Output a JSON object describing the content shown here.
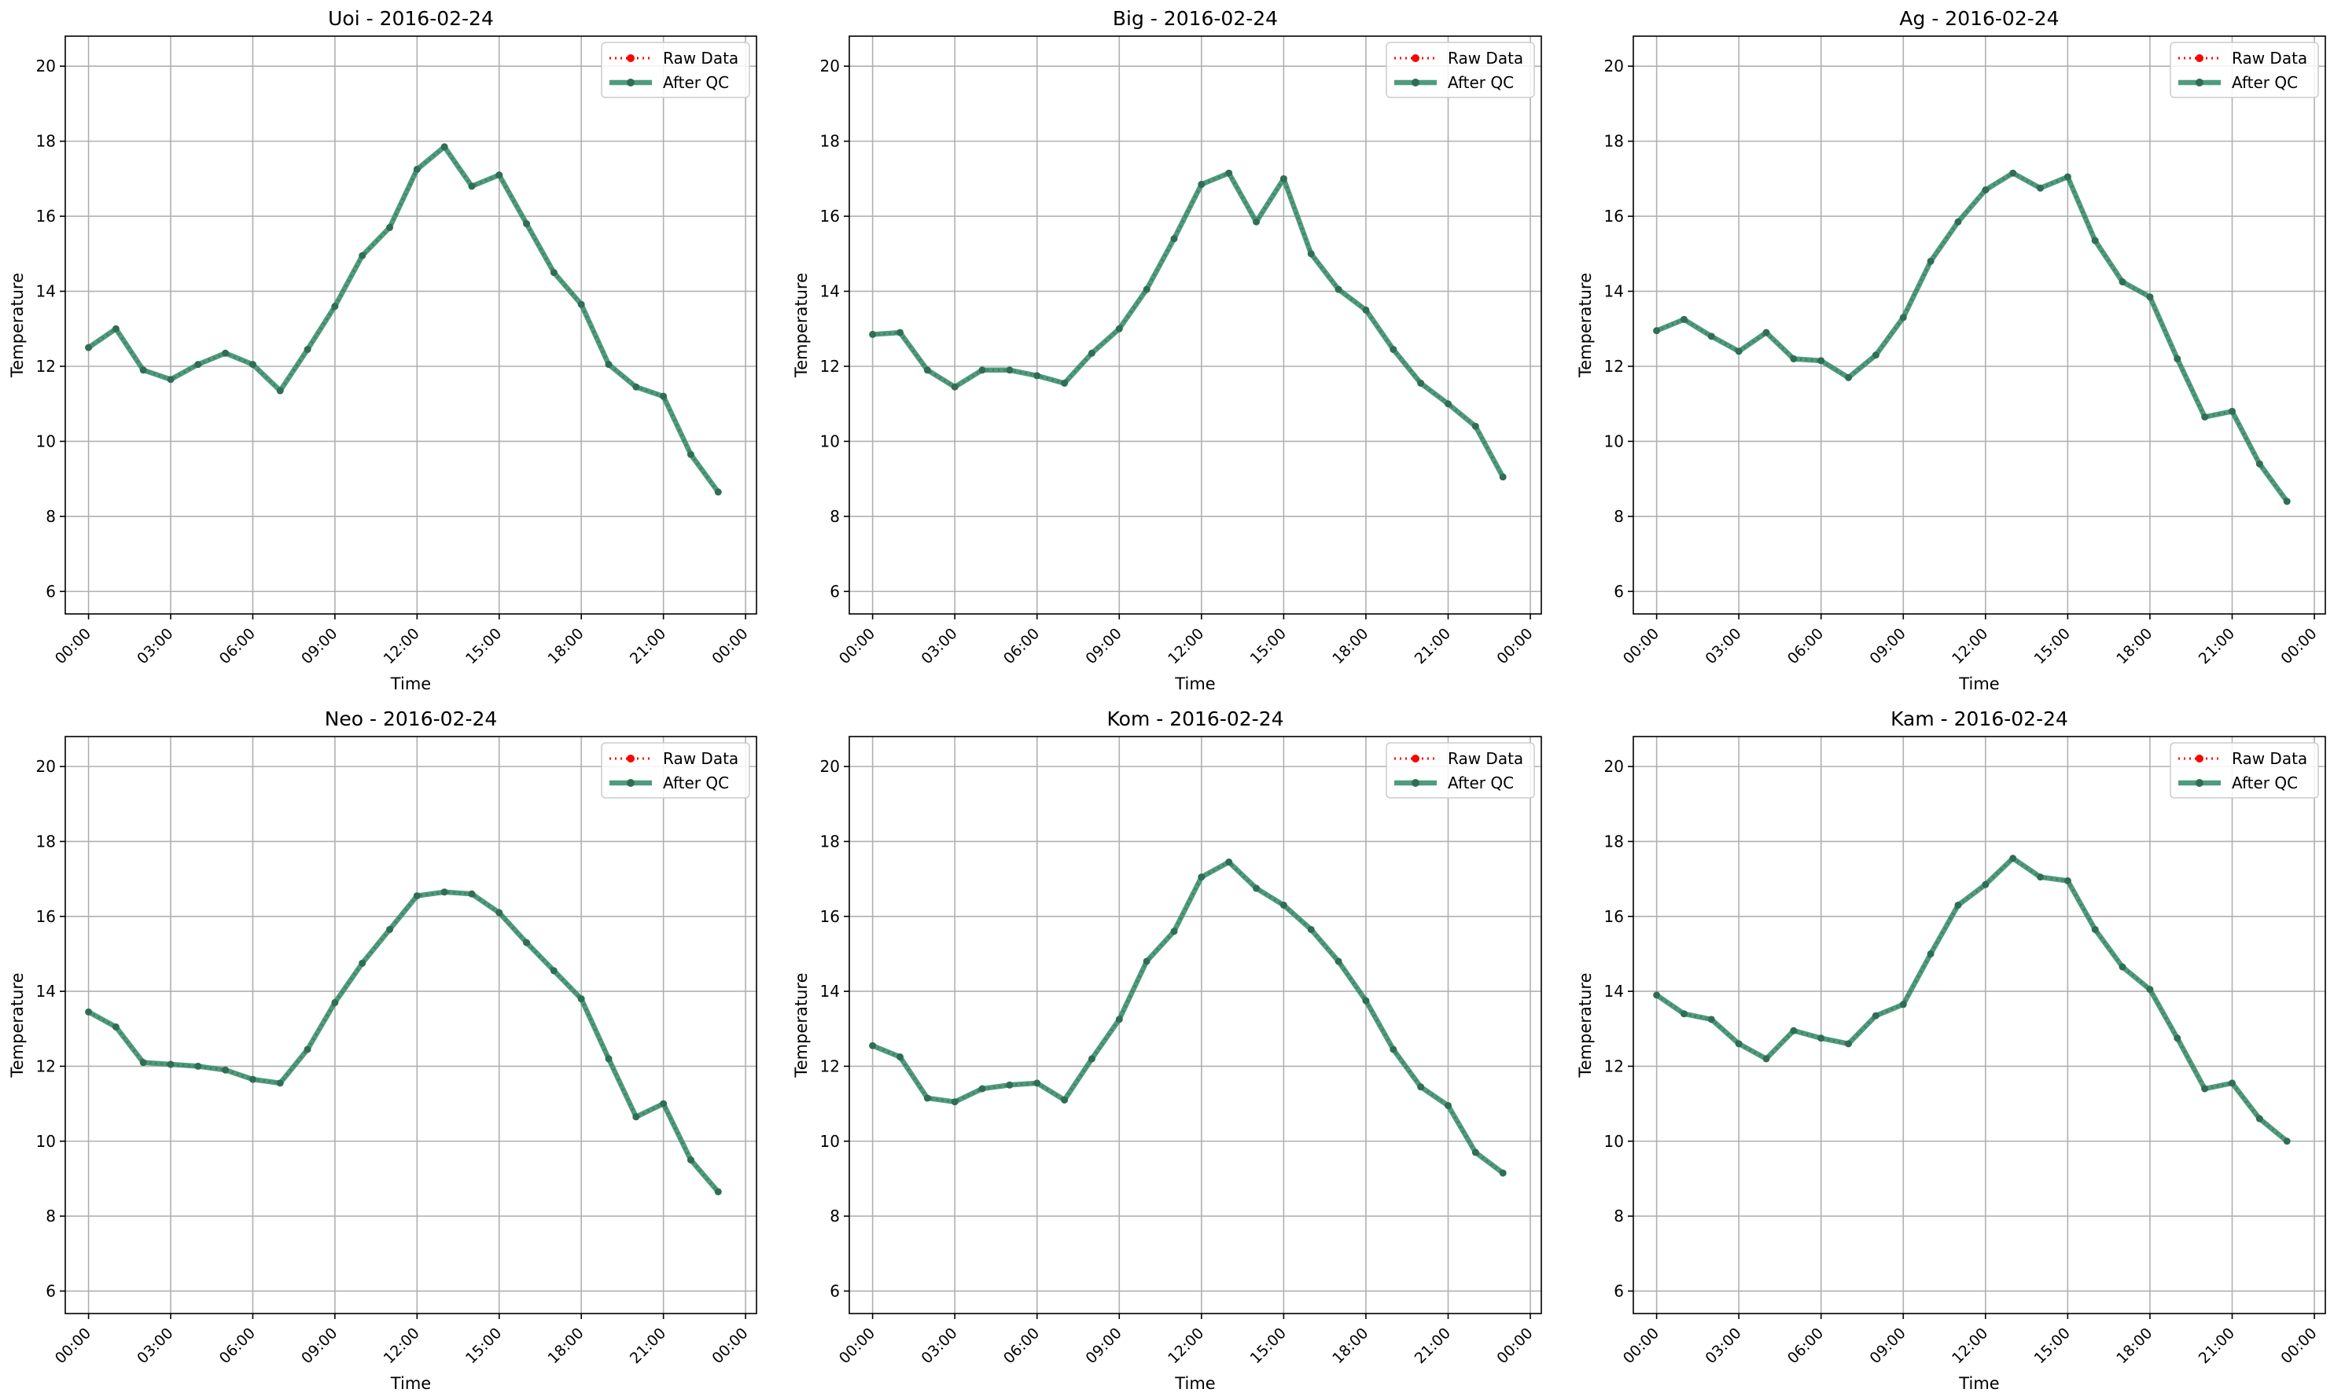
{
  "colors": {
    "raw": "#ff0000",
    "qc": "#2e8b67",
    "grid": "#b0b0b0",
    "axis": "#000000"
  },
  "legend": {
    "raw_label": "Raw Data",
    "qc_label": "After QC",
    "placement": "upper right"
  },
  "xlabel": "Time",
  "ylabel": "Temperature",
  "xticks": [
    "00:00",
    "03:00",
    "06:00",
    "09:00",
    "12:00",
    "15:00",
    "18:00",
    "21:00",
    "00:00"
  ],
  "yticks": [
    6,
    8,
    10,
    12,
    14,
    16,
    18,
    20
  ],
  "chart_data": [
    {
      "type": "line",
      "title": "Uoi - 2016-02-24",
      "x": [
        "00:00",
        "01:00",
        "02:00",
        "03:00",
        "04:00",
        "05:00",
        "06:00",
        "07:00",
        "08:00",
        "09:00",
        "10:00",
        "11:00",
        "12:00",
        "13:00",
        "14:00",
        "15:00",
        "16:00",
        "17:00",
        "18:00",
        "19:00",
        "20:00",
        "21:00",
        "22:00",
        "23:00"
      ],
      "series": [
        {
          "name": "Raw Data",
          "values": [
            12.5,
            13.0,
            11.9,
            11.65,
            12.05,
            12.35,
            12.05,
            11.35,
            12.45,
            13.6,
            14.95,
            15.7,
            17.25,
            17.85,
            16.8,
            17.1,
            15.8,
            14.5,
            13.65,
            12.05,
            11.45,
            11.2,
            9.65,
            8.65
          ]
        },
        {
          "name": "After QC",
          "values": [
            12.5,
            13.0,
            11.9,
            11.65,
            12.05,
            12.35,
            12.05,
            11.35,
            12.45,
            13.6,
            14.95,
            15.7,
            17.25,
            17.85,
            16.8,
            17.1,
            15.8,
            14.5,
            13.65,
            12.05,
            11.45,
            11.2,
            9.65,
            8.65
          ]
        }
      ],
      "xlabel": "Time",
      "ylabel": "Temperature",
      "ylim": [
        5.4,
        20.8
      ],
      "grid": true
    },
    {
      "type": "line",
      "title": "Big - 2016-02-24",
      "x": [
        "00:00",
        "01:00",
        "02:00",
        "03:00",
        "04:00",
        "05:00",
        "06:00",
        "07:00",
        "08:00",
        "09:00",
        "10:00",
        "11:00",
        "12:00",
        "13:00",
        "14:00",
        "15:00",
        "16:00",
        "17:00",
        "18:00",
        "19:00",
        "20:00",
        "21:00",
        "22:00",
        "23:00"
      ],
      "series": [
        {
          "name": "Raw Data",
          "values": [
            12.85,
            12.9,
            11.9,
            11.45,
            11.9,
            11.9,
            11.75,
            11.55,
            12.35,
            13.0,
            14.05,
            15.4,
            16.85,
            17.15,
            15.85,
            17.0,
            15.0,
            14.05,
            13.5,
            12.45,
            11.55,
            11.0,
            10.4,
            9.05
          ]
        },
        {
          "name": "After QC",
          "values": [
            12.85,
            12.9,
            11.9,
            11.45,
            11.9,
            11.9,
            11.75,
            11.55,
            12.35,
            13.0,
            14.05,
            15.4,
            16.85,
            17.15,
            15.85,
            17.0,
            15.0,
            14.05,
            13.5,
            12.45,
            11.55,
            11.0,
            10.4,
            9.05
          ]
        }
      ],
      "xlabel": "Time",
      "ylabel": "Temperature",
      "ylim": [
        5.4,
        20.8
      ],
      "grid": true
    },
    {
      "type": "line",
      "title": "Ag - 2016-02-24",
      "x": [
        "00:00",
        "01:00",
        "02:00",
        "03:00",
        "04:00",
        "05:00",
        "06:00",
        "07:00",
        "08:00",
        "09:00",
        "10:00",
        "11:00",
        "12:00",
        "13:00",
        "14:00",
        "15:00",
        "16:00",
        "17:00",
        "18:00",
        "19:00",
        "20:00",
        "21:00",
        "22:00",
        "23:00"
      ],
      "series": [
        {
          "name": "Raw Data",
          "values": [
            12.95,
            13.25,
            12.8,
            12.4,
            12.9,
            12.2,
            12.15,
            11.7,
            12.3,
            13.3,
            14.8,
            15.85,
            16.7,
            17.15,
            16.75,
            17.05,
            15.35,
            14.25,
            13.85,
            12.2,
            10.65,
            10.8,
            9.4,
            8.4
          ]
        },
        {
          "name": "After QC",
          "values": [
            12.95,
            13.25,
            12.8,
            12.4,
            12.9,
            12.2,
            12.15,
            11.7,
            12.3,
            13.3,
            14.8,
            15.85,
            16.7,
            17.15,
            16.75,
            17.05,
            15.35,
            14.25,
            13.85,
            12.2,
            10.65,
            10.8,
            9.4,
            8.4
          ]
        }
      ],
      "xlabel": "Time",
      "ylabel": "Temperature",
      "ylim": [
        5.4,
        20.8
      ],
      "grid": true
    },
    {
      "type": "line",
      "title": "Neo - 2016-02-24",
      "x": [
        "00:00",
        "01:00",
        "02:00",
        "03:00",
        "04:00",
        "05:00",
        "06:00",
        "07:00",
        "08:00",
        "09:00",
        "10:00",
        "11:00",
        "12:00",
        "13:00",
        "14:00",
        "15:00",
        "16:00",
        "17:00",
        "18:00",
        "19:00",
        "20:00",
        "21:00",
        "22:00",
        "23:00"
      ],
      "series": [
        {
          "name": "Raw Data",
          "values": [
            13.45,
            13.05,
            12.1,
            12.05,
            12.0,
            11.9,
            11.65,
            11.55,
            12.45,
            13.7,
            14.75,
            15.65,
            16.55,
            16.65,
            16.6,
            16.1,
            15.3,
            14.55,
            13.8,
            12.2,
            10.65,
            11.0,
            9.5,
            8.65
          ]
        },
        {
          "name": "After QC",
          "values": [
            13.45,
            13.05,
            12.1,
            12.05,
            12.0,
            11.9,
            11.65,
            11.55,
            12.45,
            13.7,
            14.75,
            15.65,
            16.55,
            16.65,
            16.6,
            16.1,
            15.3,
            14.55,
            13.8,
            12.2,
            10.65,
            11.0,
            9.5,
            8.65
          ]
        }
      ],
      "xlabel": "Time",
      "ylabel": "Temperature",
      "ylim": [
        5.4,
        20.8
      ],
      "grid": true
    },
    {
      "type": "line",
      "title": "Kom - 2016-02-24",
      "x": [
        "00:00",
        "01:00",
        "02:00",
        "03:00",
        "04:00",
        "05:00",
        "06:00",
        "07:00",
        "08:00",
        "09:00",
        "10:00",
        "11:00",
        "12:00",
        "13:00",
        "14:00",
        "15:00",
        "16:00",
        "17:00",
        "18:00",
        "19:00",
        "20:00",
        "21:00",
        "22:00",
        "23:00"
      ],
      "series": [
        {
          "name": "Raw Data",
          "values": [
            12.55,
            12.25,
            11.15,
            11.05,
            11.4,
            11.5,
            11.55,
            11.1,
            12.2,
            13.25,
            14.8,
            15.6,
            17.05,
            17.45,
            16.75,
            16.3,
            15.65,
            14.8,
            13.75,
            12.45,
            11.45,
            10.95,
            9.7,
            9.15
          ]
        },
        {
          "name": "After QC",
          "values": [
            12.55,
            12.25,
            11.15,
            11.05,
            11.4,
            11.5,
            11.55,
            11.1,
            12.2,
            13.25,
            14.8,
            15.6,
            17.05,
            17.45,
            16.75,
            16.3,
            15.65,
            14.8,
            13.75,
            12.45,
            11.45,
            10.95,
            9.7,
            9.15
          ]
        }
      ],
      "xlabel": "Time",
      "ylabel": "Temperature",
      "ylim": [
        5.4,
        20.8
      ],
      "grid": true
    },
    {
      "type": "line",
      "title": "Kam - 2016-02-24",
      "x": [
        "00:00",
        "01:00",
        "02:00",
        "03:00",
        "04:00",
        "05:00",
        "06:00",
        "07:00",
        "08:00",
        "09:00",
        "10:00",
        "11:00",
        "12:00",
        "13:00",
        "14:00",
        "15:00",
        "16:00",
        "17:00",
        "18:00",
        "19:00",
        "20:00",
        "21:00",
        "22:00",
        "23:00"
      ],
      "series": [
        {
          "name": "Raw Data",
          "values": [
            13.9,
            13.4,
            13.25,
            12.6,
            12.2,
            12.95,
            12.75,
            12.6,
            13.35,
            13.65,
            15.0,
            16.3,
            16.85,
            17.55,
            17.05,
            16.95,
            15.65,
            14.65,
            14.05,
            12.75,
            11.4,
            11.55,
            10.6,
            10.0
          ]
        },
        {
          "name": "After QC",
          "values": [
            13.9,
            13.4,
            13.25,
            12.6,
            12.2,
            12.95,
            12.75,
            12.6,
            13.35,
            13.65,
            15.0,
            16.3,
            16.85,
            17.55,
            17.05,
            16.95,
            15.65,
            14.65,
            14.05,
            12.75,
            11.4,
            11.55,
            10.6,
            10.0
          ]
        }
      ],
      "xlabel": "Time",
      "ylabel": "Temperature",
      "ylim": [
        5.4,
        20.8
      ],
      "grid": true
    }
  ]
}
